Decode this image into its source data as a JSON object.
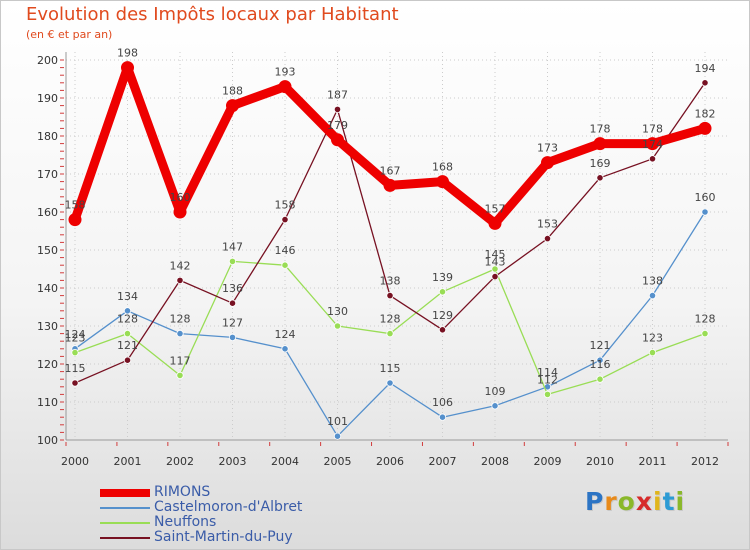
{
  "title": "Evolution des Impôts locaux par Habitant",
  "subtitle": "(en € et par an)",
  "logo": {
    "letters": [
      "P",
      "r",
      "o",
      "x",
      "i",
      "t",
      "i"
    ],
    "colors": [
      "#2c74c4",
      "#e88a1a",
      "#8ab82a",
      "#d62a2a",
      "#e0b51c",
      "#2c9bd4",
      "#8ab82a"
    ]
  },
  "chart_data": {
    "type": "line",
    "x": [
      "2000",
      "2001",
      "2002",
      "2003",
      "2004",
      "2005",
      "2006",
      "2007",
      "2008",
      "2009",
      "2010",
      "2011",
      "2012"
    ],
    "ylim": [
      100,
      200
    ],
    "yticks": [
      "100",
      "110",
      "120",
      "130",
      "140",
      "150",
      "160",
      "170",
      "180",
      "190",
      "200"
    ],
    "grid": true,
    "series": [
      {
        "name": "RIMONS",
        "color": "#ee0000",
        "values": [
          158,
          198,
          160,
          188,
          193,
          179,
          167,
          168,
          157,
          173,
          178,
          178,
          182
        ]
      },
      {
        "name": "Castelmoron-d'Albret",
        "color": "#5590cc",
        "values": [
          124,
          134,
          128,
          127,
          124,
          101,
          115,
          106,
          109,
          114,
          121,
          138,
          160
        ]
      },
      {
        "name": "Neuffons",
        "color": "#99dd55",
        "values": [
          123,
          128,
          117,
          147,
          146,
          130,
          128,
          139,
          145,
          112,
          116,
          123,
          128
        ]
      },
      {
        "name": "Saint-Martin-du-Puy",
        "color": "#771122",
        "values": [
          115,
          121,
          142,
          136,
          158,
          187,
          138,
          129,
          143,
          153,
          169,
          174,
          194
        ]
      }
    ]
  }
}
